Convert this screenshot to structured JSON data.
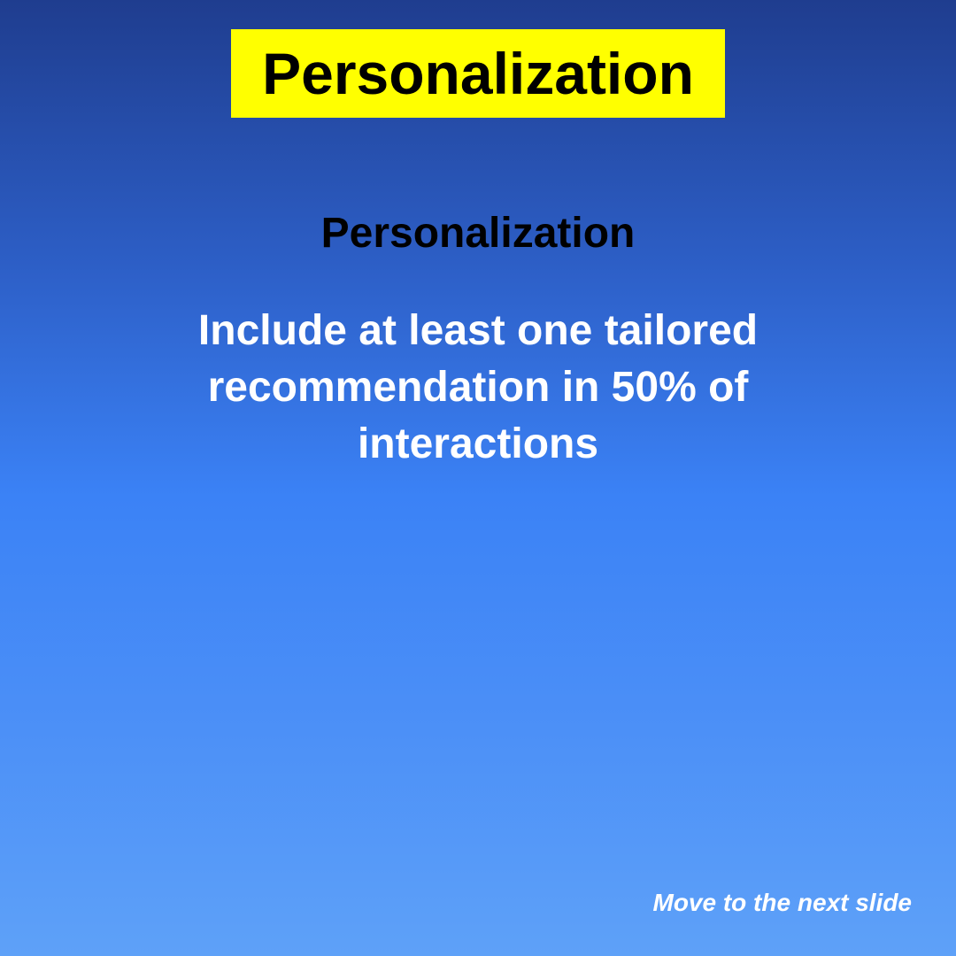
{
  "slide": {
    "title": "Personalization",
    "subtitle": "Personalization",
    "body": "Include at least one tailored recommendation in 50% of interactions",
    "next_label": "Move to the next slide"
  },
  "colors": {
    "title_background": "#ffff00",
    "title_text": "#000000",
    "subtitle_text": "#000000",
    "body_text": "#ffffff",
    "background_top": "#1f3d8f",
    "background_bottom": "#5ea1f8"
  }
}
